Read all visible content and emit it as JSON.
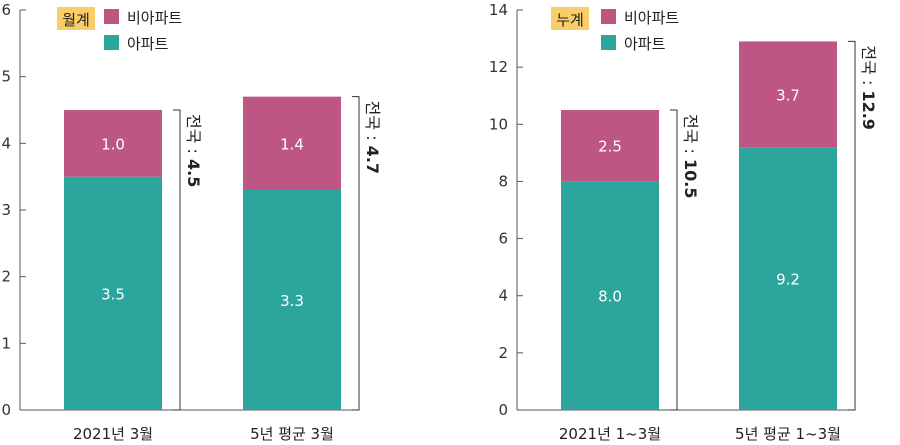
{
  "colors": {
    "apartment": "#2ca59d",
    "non_apartment": "#bd5683",
    "badge": "#f9cd68",
    "axis": "#555555"
  },
  "chart_data": [
    {
      "type": "bar",
      "stacked": true,
      "badge": "월계",
      "legend": [
        "비아파트",
        "아파트"
      ],
      "categories": [
        "2021년 3월",
        "5년 평균 3월"
      ],
      "series": [
        {
          "name": "아파트",
          "values": [
            3.5,
            3.3
          ]
        },
        {
          "name": "비아파트",
          "values": [
            1.0,
            1.4
          ]
        }
      ],
      "value_labels": {
        "아파트": [
          "3.5",
          "3.3"
        ],
        "비아파트": [
          "1.0",
          "1.4"
        ]
      },
      "totals": [
        {
          "prefix": "전국 : ",
          "value": "4.5"
        },
        {
          "prefix": "전국 : ",
          "value": "4.7"
        }
      ],
      "total_values": [
        4.5,
        4.7
      ],
      "ylim": [
        0,
        6
      ],
      "yticks": [
        0,
        1,
        2,
        3,
        4,
        5,
        6
      ]
    },
    {
      "type": "bar",
      "stacked": true,
      "badge": "누계",
      "legend": [
        "비아파트",
        "아파트"
      ],
      "categories": [
        "2021년 1~3월",
        "5년 평균 1~3월"
      ],
      "series": [
        {
          "name": "아파트",
          "values": [
            8.0,
            9.2
          ]
        },
        {
          "name": "비아파트",
          "values": [
            2.5,
            3.7
          ]
        }
      ],
      "value_labels": {
        "아파트": [
          "8.0",
          "9.2"
        ],
        "비아파트": [
          "2.5",
          "3.7"
        ]
      },
      "totals": [
        {
          "prefix": "전국 : ",
          "value": "10.5"
        },
        {
          "prefix": "전국 : ",
          "value": "12.9"
        }
      ],
      "total_values": [
        10.5,
        12.9
      ],
      "ylim": [
        0,
        14
      ],
      "yticks": [
        0,
        2,
        4,
        6,
        8,
        10,
        12,
        14
      ]
    }
  ]
}
